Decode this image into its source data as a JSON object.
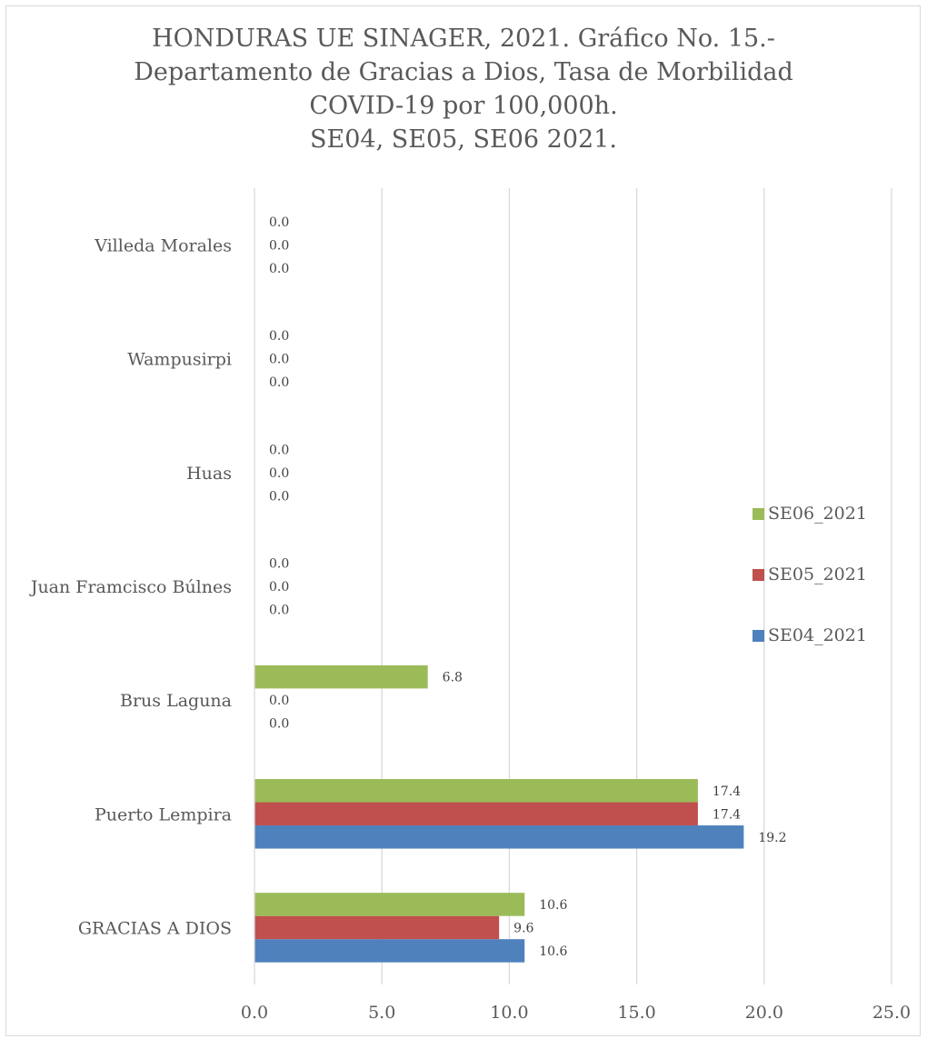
{
  "title": {
    "lines": [
      "HONDURAS UE SINAGER, 2021. Gráfico No. 15.-",
      "Departamento de Gracias a Dios, Tasa de Morbilidad",
      "COVID-19 por 100,000h.",
      "SE04, SE05, SE06 2021."
    ]
  },
  "legend": {
    "items": [
      {
        "label": "SE06_2021",
        "color": "#9bbb59"
      },
      {
        "label": "SE05_2021",
        "color": "#c0504d"
      },
      {
        "label": "SE04_2021",
        "color": "#4f81bd"
      }
    ],
    "placement": "right"
  },
  "chart_data": {
    "type": "bar",
    "orientation": "horizontal",
    "title": "HONDURAS UE SINAGER, 2021. Gráfico No. 15.- Departamento de Gracias a Dios, Tasa de Morbilidad COVID-19 por 100,000h. SE04, SE05, SE06 2021.",
    "categories": [
      "GRACIAS A DIOS",
      "Puerto Lempira",
      "Brus Laguna",
      "Juan Framcisco Búlnes",
      "Huas",
      "Wampusirpi",
      "Villeda Morales"
    ],
    "series": [
      {
        "name": "SE04_2021",
        "color": "#4f81bd",
        "values": [
          10.6,
          19.2,
          0.0,
          0.0,
          0.0,
          0.0,
          0.0
        ]
      },
      {
        "name": "SE05_2021",
        "color": "#c0504d",
        "values": [
          9.6,
          17.4,
          0.0,
          0.0,
          0.0,
          0.0,
          0.0
        ]
      },
      {
        "name": "SE06_2021",
        "color": "#9bbb59",
        "values": [
          10.6,
          17.4,
          6.8,
          0.0,
          0.0,
          0.0,
          0.0
        ]
      }
    ],
    "xlim": [
      0,
      25
    ],
    "xticks": [
      0,
      5,
      10,
      15,
      20,
      25
    ],
    "xtick_labels": [
      "0.0",
      "5.0",
      "10.0",
      "15.0",
      "20.0",
      "25.0"
    ],
    "grid": "vertical",
    "xlabel": "",
    "ylabel": ""
  }
}
